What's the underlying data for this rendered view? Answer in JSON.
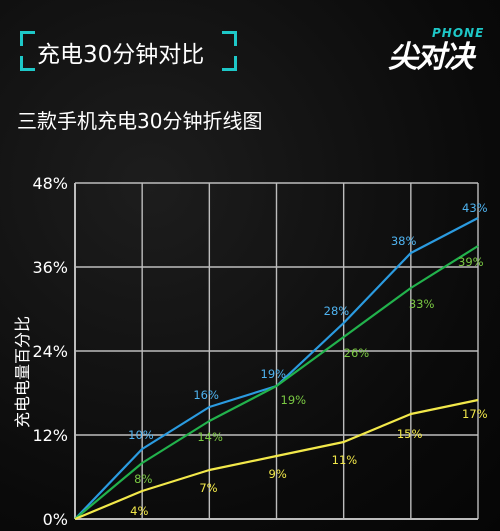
{
  "header": {
    "title": "充电30分钟对比"
  },
  "logo": {
    "main": "尖对决",
    "sub": "PHONE"
  },
  "chart_data": {
    "type": "line",
    "title": "三款手机充电30分钟折线图",
    "ylabel": "充电电量百分比",
    "xlabel": "",
    "ylim": [
      0,
      48
    ],
    "yticks": [
      "0%",
      "12%",
      "24%",
      "36%",
      "48%"
    ],
    "x": [
      0,
      1,
      2,
      3,
      4,
      5,
      6
    ],
    "grid": true,
    "series": [
      {
        "color": "#2b9be0",
        "values": [
          0,
          10,
          16,
          19,
          28,
          38,
          43
        ],
        "labels": [
          "",
          "10%",
          "16%",
          "19%",
          "28%",
          "38%",
          "43%"
        ]
      },
      {
        "color": "#22b24c",
        "values": [
          0,
          8,
          14,
          19,
          26,
          33,
          39
        ],
        "labels": [
          "",
          "8%",
          "14%",
          "19%",
          "26%",
          "33%",
          "39%"
        ]
      },
      {
        "color": "#f2e84a",
        "values": [
          0,
          4,
          7,
          9,
          11,
          15,
          17
        ],
        "labels": [
          "",
          "4%",
          "7%",
          "9%",
          "11%",
          "15%",
          "17%"
        ]
      }
    ]
  }
}
